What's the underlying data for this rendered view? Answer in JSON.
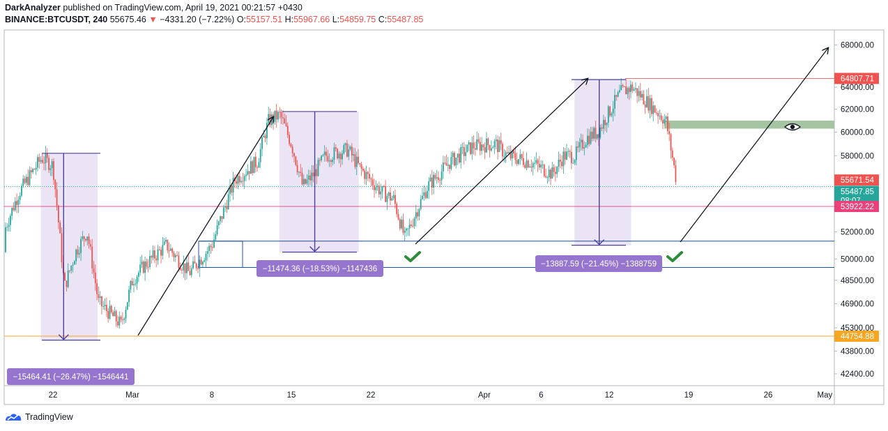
{
  "header": {
    "author": "DarkAnalyzer",
    "published_text": "published on TradingView.com, April 19, 2021 00:21:57 +0430",
    "symbol": "BINANCE:BTCUSDT, 240",
    "last": "55675.46",
    "change": "−4331.20 (−7.22%)",
    "o_label": "O:",
    "o_value": "55157.51",
    "h_label": "H:",
    "h_value": "55967.66",
    "l_label": "L:",
    "l_value": "54859.75",
    "c_label": "C:",
    "c_value": "55487.85"
  },
  "footer": {
    "brand": "TradingView"
  },
  "colors": {
    "up": "#26a69a",
    "down": "#ef5350",
    "range": "#d1c4e9",
    "measure": "#4a3f9b",
    "zone": "#1e4fa8",
    "resistance": "#e57373",
    "support": "#e91e63",
    "orange": "#f5a623",
    "green_zone": "#a5c4a1",
    "check": "#2e8b3a",
    "label_bg": "#9575cd"
  },
  "chart_data": {
    "type": "candlestick",
    "symbol": "BINANCE:BTCUSDT",
    "timeframe": "240",
    "y_axis": {
      "ticks": [
        "68000.00",
        "64000.00",
        "62000.00",
        "60000.00",
        "58000.00",
        "52000.00",
        "50000.00",
        "48500.00",
        "46900.00",
        "45300.00",
        "43800.00",
        "42400.00"
      ],
      "log_scale": true
    },
    "x_axis": {
      "ticks": [
        "22",
        "Mar",
        "8",
        "15",
        "22",
        "Apr",
        "6",
        "12",
        "19",
        "26",
        "May"
      ]
    },
    "price_labels": [
      {
        "value": "64807.71",
        "color": "#ef5350"
      },
      {
        "value": "55671.54",
        "color": "#ef5350"
      },
      {
        "value": "55487.85",
        "color": "#26a69a",
        "sub": "08:07"
      },
      {
        "value": "53922.22",
        "color": "#ec407a"
      },
      {
        "value": "44754.88",
        "color": "#f5a623"
      }
    ],
    "horizontal_lines": [
      64807.71,
      53922.22,
      44754.88,
      55487.85
    ],
    "measurements": [
      {
        "text": "−15464.41 (−26.47%) −1546441"
      },
      {
        "text": "−11474.36 (−18.53%) −1147436"
      },
      {
        "text": "−13887.59 (−21.45%) −1388759"
      }
    ],
    "path": [
      {
        "date": "2021-02-17",
        "price": 50500
      },
      {
        "date": "2021-02-19",
        "price": 55000
      },
      {
        "date": "2021-02-21",
        "price": 57800
      },
      {
        "date": "2021-02-22",
        "price": 57200
      },
      {
        "date": "2021-02-23",
        "price": 48000
      },
      {
        "date": "2021-02-24",
        "price": 50500
      },
      {
        "date": "2021-02-25",
        "price": 52000
      },
      {
        "date": "2021-02-26",
        "price": 47000
      },
      {
        "date": "2021-02-28",
        "price": 45500
      },
      {
        "date": "2021-03-01",
        "price": 48500
      },
      {
        "date": "2021-03-02",
        "price": 49500
      },
      {
        "date": "2021-03-04",
        "price": 51000
      },
      {
        "date": "2021-03-06",
        "price": 49000
      },
      {
        "date": "2021-03-08",
        "price": 51000
      },
      {
        "date": "2021-03-10",
        "price": 56000
      },
      {
        "date": "2021-03-12",
        "price": 57500
      },
      {
        "date": "2021-03-13",
        "price": 61000
      },
      {
        "date": "2021-03-14",
        "price": 61500
      },
      {
        "date": "2021-03-15",
        "price": 59000
      },
      {
        "date": "2021-03-16",
        "price": 55500
      },
      {
        "date": "2021-03-17",
        "price": 56500
      },
      {
        "date": "2021-03-18",
        "price": 58000
      },
      {
        "date": "2021-03-20",
        "price": 58500
      },
      {
        "date": "2021-03-21",
        "price": 57000
      },
      {
        "date": "2021-03-23",
        "price": 55000
      },
      {
        "date": "2021-03-24",
        "price": 54500
      },
      {
        "date": "2021-03-25",
        "price": 51500
      },
      {
        "date": "2021-03-26",
        "price": 53500
      },
      {
        "date": "2021-03-27",
        "price": 55500
      },
      {
        "date": "2021-03-29",
        "price": 57500
      },
      {
        "date": "2021-03-31",
        "price": 58800
      },
      {
        "date": "2021-04-02",
        "price": 59000
      },
      {
        "date": "2021-04-03",
        "price": 58000
      },
      {
        "date": "2021-04-05",
        "price": 57500
      },
      {
        "date": "2021-04-07",
        "price": 56500
      },
      {
        "date": "2021-04-08",
        "price": 58000
      },
      {
        "date": "2021-04-09",
        "price": 58000
      },
      {
        "date": "2021-04-10",
        "price": 59500
      },
      {
        "date": "2021-04-11",
        "price": 60000
      },
      {
        "date": "2021-04-13",
        "price": 63500
      },
      {
        "date": "2021-04-14",
        "price": 64000
      },
      {
        "date": "2021-04-15",
        "price": 63000
      },
      {
        "date": "2021-04-16",
        "price": 62000
      },
      {
        "date": "2021-04-17",
        "price": 61000
      },
      {
        "date": "2021-04-18",
        "price": 55500
      }
    ]
  }
}
